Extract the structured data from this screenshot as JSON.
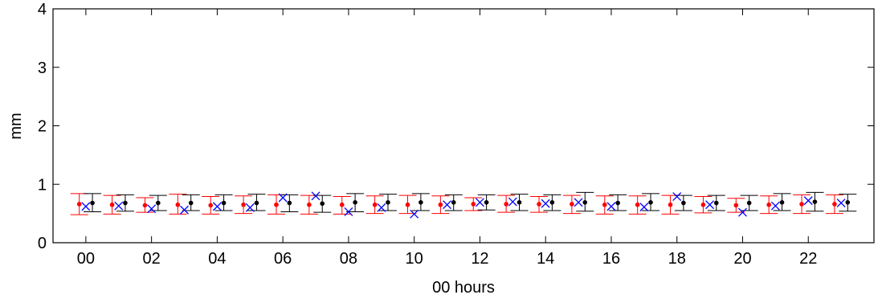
{
  "chart_data": {
    "type": "scatter",
    "title": "",
    "xlabel": "00 hours",
    "ylabel": "mm",
    "xlim": [
      -1,
      24
    ],
    "ylim": [
      0,
      4
    ],
    "xticks": [
      0,
      2,
      4,
      6,
      8,
      10,
      12,
      14,
      16,
      18,
      20,
      22
    ],
    "xtick_labels": [
      "00",
      "02",
      "04",
      "06",
      "08",
      "10",
      "12",
      "14",
      "16",
      "18",
      "20",
      "22"
    ],
    "yticks": [
      0,
      1,
      2,
      3,
      4
    ],
    "ytick_labels": [
      "0",
      "1",
      "2",
      "3",
      "4"
    ],
    "grid": false,
    "legend": "none",
    "colors": {
      "red": "#ff0000",
      "black": "#000000",
      "blue": "#0000ff"
    },
    "series": [
      {
        "color": "#ff0000",
        "marker": "dot-errorbar",
        "x": [
          0,
          1,
          2,
          3,
          4,
          5,
          6,
          7,
          8,
          9,
          10,
          11,
          12,
          13,
          14,
          15,
          16,
          17,
          18,
          19,
          20,
          21,
          22,
          23
        ],
        "values": [
          0.66,
          0.65,
          0.64,
          0.65,
          0.64,
          0.65,
          0.65,
          0.65,
          0.65,
          0.65,
          0.65,
          0.65,
          0.66,
          0.66,
          0.66,
          0.66,
          0.65,
          0.65,
          0.65,
          0.65,
          0.64,
          0.65,
          0.66,
          0.66
        ],
        "lower": [
          0.48,
          0.49,
          0.52,
          0.49,
          0.49,
          0.5,
          0.49,
          0.49,
          0.49,
          0.5,
          0.5,
          0.5,
          0.55,
          0.52,
          0.52,
          0.5,
          0.49,
          0.49,
          0.49,
          0.51,
          0.52,
          0.5,
          0.5,
          0.5
        ],
        "upper": [
          0.84,
          0.81,
          0.77,
          0.83,
          0.79,
          0.8,
          0.82,
          0.81,
          0.79,
          0.8,
          0.81,
          0.8,
          0.77,
          0.81,
          0.79,
          0.81,
          0.8,
          0.8,
          0.81,
          0.79,
          0.76,
          0.8,
          0.82,
          0.82
        ]
      },
      {
        "color": "#000000",
        "marker": "dot-errorbar",
        "x": [
          0,
          1,
          2,
          3,
          4,
          5,
          6,
          7,
          8,
          9,
          10,
          11,
          12,
          13,
          14,
          15,
          16,
          17,
          18,
          19,
          20,
          21,
          22,
          23
        ],
        "values": [
          0.68,
          0.68,
          0.68,
          0.68,
          0.68,
          0.68,
          0.68,
          0.67,
          0.69,
          0.69,
          0.69,
          0.69,
          0.69,
          0.69,
          0.69,
          0.69,
          0.68,
          0.69,
          0.68,
          0.68,
          0.68,
          0.69,
          0.7,
          0.69
        ],
        "lower": [
          0.53,
          0.54,
          0.55,
          0.55,
          0.55,
          0.55,
          0.53,
          0.52,
          0.53,
          0.55,
          0.55,
          0.55,
          0.56,
          0.55,
          0.55,
          0.54,
          0.55,
          0.55,
          0.55,
          0.55,
          0.55,
          0.55,
          0.54,
          0.54
        ],
        "upper": [
          0.84,
          0.82,
          0.81,
          0.82,
          0.82,
          0.83,
          0.82,
          0.81,
          0.84,
          0.83,
          0.84,
          0.82,
          0.82,
          0.83,
          0.82,
          0.86,
          0.82,
          0.84,
          0.81,
          0.81,
          0.81,
          0.84,
          0.86,
          0.83
        ]
      },
      {
        "color": "#0000ff",
        "marker": "x",
        "x": [
          0,
          1,
          2,
          3,
          4,
          5,
          6,
          7,
          8,
          9,
          10,
          11,
          12,
          13,
          14,
          15,
          16,
          17,
          18,
          19,
          20,
          21,
          22,
          23
        ],
        "values": [
          0.62,
          0.63,
          0.58,
          0.56,
          0.62,
          0.6,
          0.77,
          0.8,
          0.53,
          0.6,
          0.49,
          0.65,
          0.69,
          0.7,
          0.67,
          0.69,
          0.62,
          0.61,
          0.79,
          0.65,
          0.52,
          0.63,
          0.72,
          0.68
        ]
      }
    ]
  }
}
